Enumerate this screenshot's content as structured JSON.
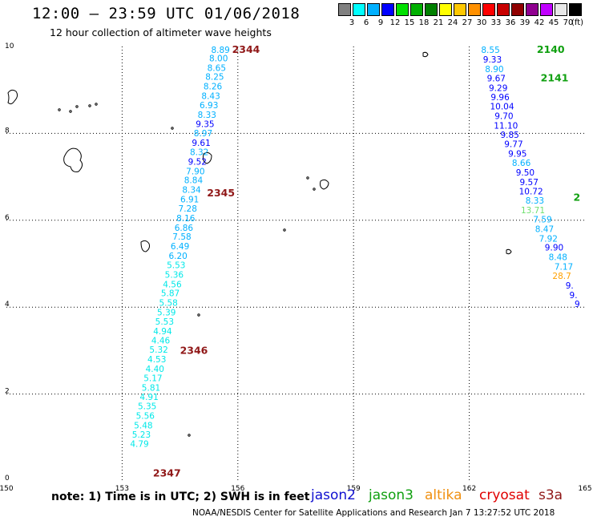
{
  "title": "12:00 – 23:59 UTC 01/06/2018",
  "subtitle": "12 hour collection of altimeter wave heights",
  "note": "note: 1) Time is in UTC; 2) SWH is in feet",
  "credit": "NOAA/NESDIS Center for Satellite Applications and Research    Jan  7 13:27:52 UTC 2018",
  "satellites": [
    {
      "name": "jason2",
      "color": "#1010d0"
    },
    {
      "name": "jason3",
      "color": "#10a010"
    },
    {
      "name": "altika",
      "color": "#f09010"
    },
    {
      "name": "cryosat",
      "color": "#e00000"
    },
    {
      "name": "s3a",
      "color": "#901818"
    }
  ],
  "legend": {
    "unit": "(ft)",
    "colors": [
      "#808080",
      "#00ffff",
      "#00b0ff",
      "#0000ff",
      "#00e000",
      "#00b000",
      "#008000",
      "#ffff00",
      "#ffc800",
      "#ff9000",
      "#ff0000",
      "#c80000",
      "#900000",
      "#900090",
      "#c000ff",
      "#e8e8e8",
      "#000000"
    ],
    "ticks": [
      "3",
      "6",
      "9",
      "12",
      "15",
      "18",
      "21",
      "24",
      "27",
      "30",
      "33",
      "36",
      "39",
      "42",
      "45",
      "70"
    ]
  },
  "map": {
    "lon_range": [
      150,
      165
    ],
    "lat_range": [
      0,
      10
    ],
    "x_ticks": [
      150,
      153,
      156,
      159,
      162,
      165
    ],
    "y_ticks": [
      0,
      2,
      4,
      6,
      8,
      10
    ],
    "x_tick_labels": [
      "150",
      "153",
      "156",
      "159",
      "162",
      "165"
    ],
    "y_tick_labels": [
      "0",
      "2",
      "4",
      "6",
      "8",
      "10"
    ]
  },
  "chart_data": {
    "type": "scatter",
    "tracks": [
      {
        "label": "2344",
        "label_color": "#901818",
        "label_point": [
          155.85,
          9.85
        ],
        "labels_secondary": [
          {
            "text": "2345",
            "point": [
              155.2,
              6.55
            ]
          },
          {
            "text": "2346",
            "point": [
              154.5,
              2.92
            ]
          },
          {
            "text": "2347",
            "point": [
              153.8,
              0.1
            ]
          }
        ],
        "points": [
          {
            "lon": 155.55,
            "lat": 9.85,
            "value": "8.89",
            "color": "#00b0ff"
          },
          {
            "lon": 155.5,
            "lat": 9.66,
            "value": "8.00",
            "color": "#00b0ff"
          },
          {
            "lon": 155.45,
            "lat": 9.44,
            "value": "8.65",
            "color": "#00b0ff"
          },
          {
            "lon": 155.4,
            "lat": 9.23,
            "value": "8.25",
            "color": "#00b0ff"
          },
          {
            "lon": 155.35,
            "lat": 9.01,
            "value": "8.26",
            "color": "#00b0ff"
          },
          {
            "lon": 155.3,
            "lat": 8.79,
            "value": "8.43",
            "color": "#00b0ff"
          },
          {
            "lon": 155.25,
            "lat": 8.58,
            "value": "6.93",
            "color": "#00b0ff"
          },
          {
            "lon": 155.2,
            "lat": 8.36,
            "value": "8.33",
            "color": "#00b0ff"
          },
          {
            "lon": 155.15,
            "lat": 8.15,
            "value": "9.35",
            "color": "#0000ff"
          },
          {
            "lon": 155.1,
            "lat": 7.93,
            "value": "8.97",
            "color": "#00b0ff"
          },
          {
            "lon": 155.05,
            "lat": 7.71,
            "value": "9.61",
            "color": "#0000ff"
          },
          {
            "lon": 155.0,
            "lat": 7.5,
            "value": "8.32",
            "color": "#00b0ff"
          },
          {
            "lon": 154.95,
            "lat": 7.28,
            "value": "9.52",
            "color": "#0000ff"
          },
          {
            "lon": 154.9,
            "lat": 7.06,
            "value": "7.90",
            "color": "#00b0ff"
          },
          {
            "lon": 154.85,
            "lat": 6.85,
            "value": "8.84",
            "color": "#00b0ff"
          },
          {
            "lon": 154.8,
            "lat": 6.63,
            "value": "8.34",
            "color": "#00b0ff"
          },
          {
            "lon": 154.75,
            "lat": 6.41,
            "value": "6.91",
            "color": "#00b0ff"
          },
          {
            "lon": 154.7,
            "lat": 6.2,
            "value": "7.28",
            "color": "#00b0ff"
          },
          {
            "lon": 154.65,
            "lat": 5.98,
            "value": "8.16",
            "color": "#00b0ff"
          },
          {
            "lon": 154.6,
            "lat": 5.76,
            "value": "6.86",
            "color": "#00b0ff"
          },
          {
            "lon": 154.55,
            "lat": 5.55,
            "value": "7.58",
            "color": "#00b0ff"
          },
          {
            "lon": 154.5,
            "lat": 5.33,
            "value": "6.49",
            "color": "#00b0ff"
          },
          {
            "lon": 154.45,
            "lat": 5.11,
            "value": "6.20",
            "color": "#00b0ff"
          },
          {
            "lon": 154.4,
            "lat": 4.9,
            "value": "5.53",
            "color": "#00e8e8"
          },
          {
            "lon": 154.35,
            "lat": 4.68,
            "value": "5.36",
            "color": "#00e8e8"
          },
          {
            "lon": 154.3,
            "lat": 4.46,
            "value": "4.56",
            "color": "#00e8e8"
          },
          {
            "lon": 154.25,
            "lat": 4.25,
            "value": "5.87",
            "color": "#00e8e8"
          },
          {
            "lon": 154.2,
            "lat": 4.03,
            "value": "5.58",
            "color": "#00e8e8"
          },
          {
            "lon": 154.15,
            "lat": 3.81,
            "value": "5.39",
            "color": "#00e8e8"
          },
          {
            "lon": 154.1,
            "lat": 3.6,
            "value": "5.53",
            "color": "#00e8e8"
          },
          {
            "lon": 154.05,
            "lat": 3.38,
            "value": "4.94",
            "color": "#00e8e8"
          },
          {
            "lon": 154.0,
            "lat": 3.16,
            "value": "4.46",
            "color": "#00e8e8"
          },
          {
            "lon": 153.95,
            "lat": 2.95,
            "value": "5.32",
            "color": "#00e8e8"
          },
          {
            "lon": 153.9,
            "lat": 2.73,
            "value": "4.53",
            "color": "#00e8e8"
          },
          {
            "lon": 153.85,
            "lat": 2.51,
            "value": "4.40",
            "color": "#00e8e8"
          },
          {
            "lon": 153.8,
            "lat": 2.3,
            "value": "5.17",
            "color": "#00e8e8"
          },
          {
            "lon": 153.75,
            "lat": 2.08,
            "value": "5.81",
            "color": "#00e8e8"
          },
          {
            "lon": 153.7,
            "lat": 1.86,
            "value": "4.91",
            "color": "#00e8e8"
          },
          {
            "lon": 153.65,
            "lat": 1.65,
            "value": "5.35",
            "color": "#00e8e8"
          },
          {
            "lon": 153.6,
            "lat": 1.43,
            "value": "5.56",
            "color": "#00e8e8"
          },
          {
            "lon": 153.55,
            "lat": 1.21,
            "value": "5.48",
            "color": "#00e8e8"
          },
          {
            "lon": 153.5,
            "lat": 1.0,
            "value": "5.23",
            "color": "#00e8e8"
          },
          {
            "lon": 153.45,
            "lat": 0.78,
            "value": "4.79",
            "color": "#00e8e8"
          }
        ]
      },
      {
        "label": "2140",
        "label_color": "#10a010",
        "label_point": [
          163.75,
          9.85
        ],
        "labels_secondary": [
          {
            "text": "2141",
            "point": [
              163.85,
              9.2
            ]
          },
          {
            "text": "2",
            "point": [
              164.7,
              6.45
            ]
          }
        ],
        "points": [
          {
            "lon": 162.55,
            "lat": 9.85,
            "value": "8.55",
            "color": "#00b0ff"
          },
          {
            "lon": 162.6,
            "lat": 9.63,
            "value": "9.33",
            "color": "#0000ff"
          },
          {
            "lon": 162.65,
            "lat": 9.41,
            "value": "8.90",
            "color": "#00b0ff"
          },
          {
            "lon": 162.7,
            "lat": 9.2,
            "value": "9.67",
            "color": "#0000ff"
          },
          {
            "lon": 162.75,
            "lat": 8.98,
            "value": "9.29",
            "color": "#0000ff"
          },
          {
            "lon": 162.8,
            "lat": 8.76,
            "value": "9.96",
            "color": "#0000ff"
          },
          {
            "lon": 162.85,
            "lat": 8.55,
            "value": "10.04",
            "color": "#0000ff"
          },
          {
            "lon": 162.9,
            "lat": 8.33,
            "value": "9.70",
            "color": "#0000ff"
          },
          {
            "lon": 162.95,
            "lat": 8.11,
            "value": "11.10",
            "color": "#0000ff"
          },
          {
            "lon": 163.05,
            "lat": 7.9,
            "value": "9.85",
            "color": "#0000ff"
          },
          {
            "lon": 163.15,
            "lat": 7.68,
            "value": "9.77",
            "color": "#0000ff"
          },
          {
            "lon": 163.25,
            "lat": 7.46,
            "value": "9.95",
            "color": "#0000ff"
          },
          {
            "lon": 163.35,
            "lat": 7.25,
            "value": "8.66",
            "color": "#00b0ff"
          },
          {
            "lon": 163.45,
            "lat": 7.03,
            "value": "9.50",
            "color": "#0000ff"
          },
          {
            "lon": 163.55,
            "lat": 6.81,
            "value": "9.57",
            "color": "#0000ff"
          },
          {
            "lon": 163.6,
            "lat": 6.6,
            "value": "10.72",
            "color": "#0000ff"
          },
          {
            "lon": 163.7,
            "lat": 6.38,
            "value": "8.33",
            "color": "#00b0ff"
          },
          {
            "lon": 163.65,
            "lat": 6.16,
            "value": "13.71",
            "color": "#70e070"
          },
          {
            "lon": 163.9,
            "lat": 5.95,
            "value": "7.59",
            "color": "#00b0ff"
          },
          {
            "lon": 163.95,
            "lat": 5.73,
            "value": "8.47",
            "color": "#00b0ff"
          },
          {
            "lon": 164.05,
            "lat": 5.51,
            "value": "7.92",
            "color": "#00b0ff"
          },
          {
            "lon": 164.2,
            "lat": 5.3,
            "value": "9.90",
            "color": "#0000ff"
          },
          {
            "lon": 164.3,
            "lat": 5.08,
            "value": "8.48",
            "color": "#00b0ff"
          },
          {
            "lon": 164.45,
            "lat": 4.86,
            "value": "7.17",
            "color": "#00b0ff"
          },
          {
            "lon": 164.4,
            "lat": 4.65,
            "value": "28.7",
            "color": "#ffa000"
          },
          {
            "lon": 164.6,
            "lat": 4.43,
            "value": "9.",
            "color": "#0000ff"
          },
          {
            "lon": 164.7,
            "lat": 4.21,
            "value": "9.",
            "color": "#0000ff"
          },
          {
            "lon": 164.8,
            "lat": 4.0,
            "value": "9",
            "color": "#0000ff"
          }
        ]
      }
    ]
  }
}
